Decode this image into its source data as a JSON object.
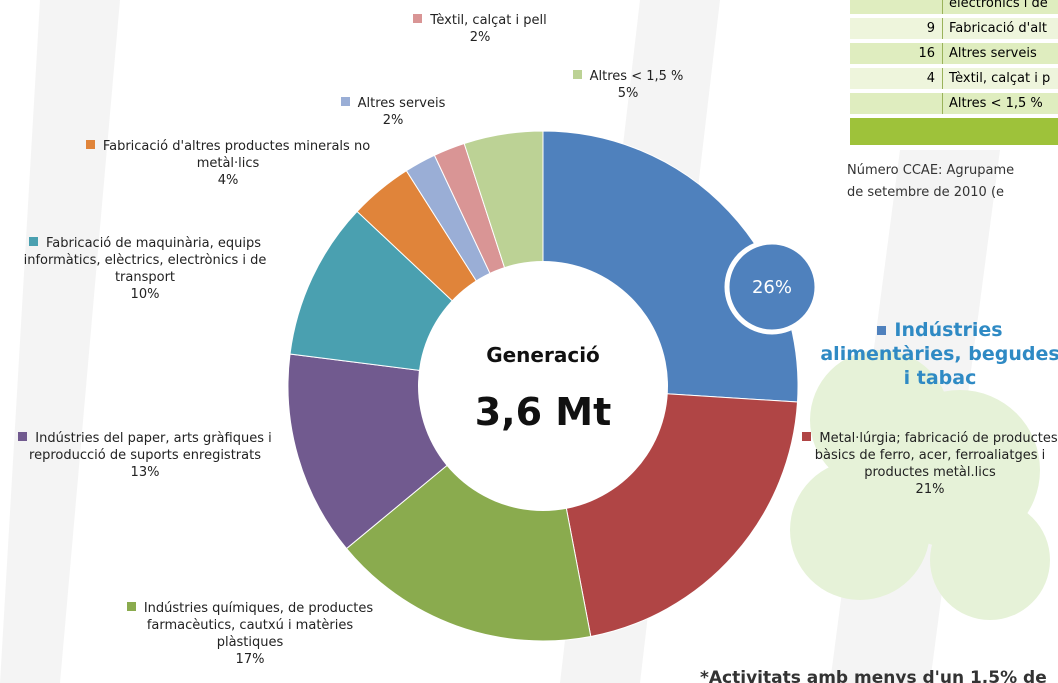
{
  "chart_data": {
    "type": "pie",
    "donut": true,
    "center_title": "Generació",
    "center_value": "3,6 Mt",
    "categories": [
      "Indústries alimentàries, begudes i tabac",
      "Metal·lúrgia; fabricació de productes bàsics de ferro, acer, ferroaliatges i productes metàl.lics",
      "Indústries químiques, de productes farmacèutics, cautxú i matèries plàstiques",
      "Indústries del paper, arts gràfiques i reproducció de suports enregistrats",
      "Fabricació de maquinària, equips informàtics, elèctrics, electrònics i de transport",
      "Fabricació d'altres productes minerals no metàl·lics",
      "Altres serveis",
      "Tèxtil, calçat i pell",
      "Altres < 1,5 %"
    ],
    "values": [
      26,
      21,
      17,
      13,
      10,
      4,
      2,
      2,
      5
    ],
    "value_labels": [
      "26%",
      "21%",
      "17%",
      "13%",
      "10%",
      "4%",
      "2%",
      "2%",
      "5%"
    ],
    "colors": [
      "#4f81bd",
      "#b04545",
      "#8aab4e",
      "#715a8f",
      "#4aa0b0",
      "#e0843a",
      "#9aaed6",
      "#d99595",
      "#bcd295"
    ]
  },
  "table": {
    "rows": [
      {
        "text": "electrònics i de"
      },
      {
        "num": "9",
        "text": "Fabricació d'alt"
      },
      {
        "num": "16",
        "text": "Altres serveis"
      },
      {
        "num": "4",
        "text": "Tèxtil, calçat i p"
      },
      {
        "text": "Altres < 1,5 %"
      }
    ]
  },
  "notes": [
    "Número CCAE: Agrupame",
    "de setembre de 2010 (e"
  ],
  "footnote": "*Activitats amb menys d'un 1,5% de"
}
